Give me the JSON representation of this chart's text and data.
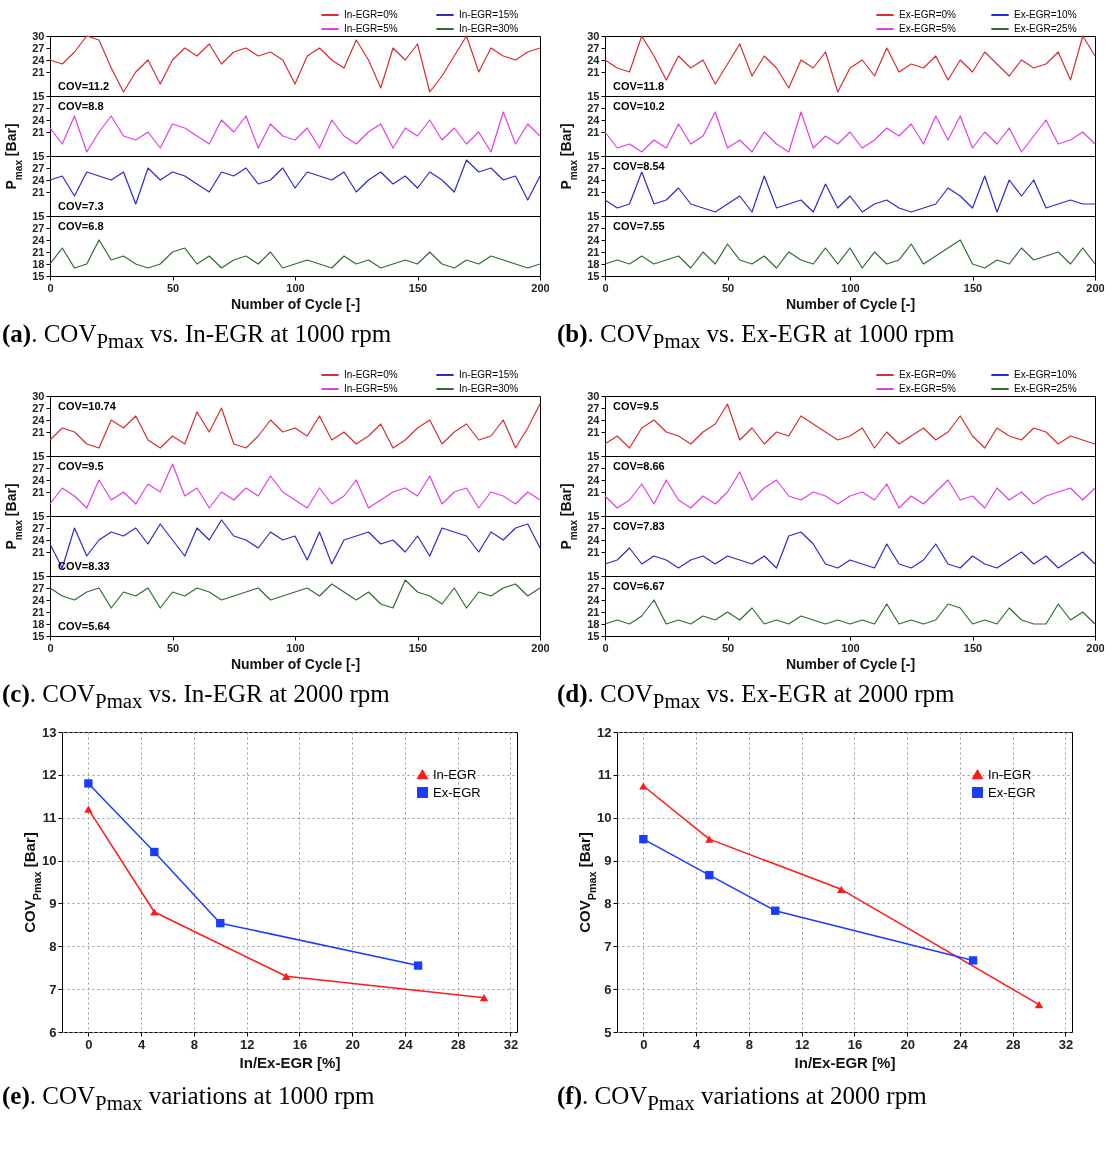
{
  "chart_data": [
    {
      "type": "line",
      "x": [
        0,
        5,
        10,
        15,
        20,
        25,
        30,
        35,
        40,
        45,
        50,
        55,
        60,
        65,
        70,
        75,
        80,
        85,
        90,
        95,
        100,
        105,
        110,
        115,
        120,
        125,
        130,
        135,
        140,
        145,
        150,
        155,
        160,
        165,
        170,
        175,
        180,
        185,
        190,
        195,
        200
      ],
      "xlim": [
        0,
        200
      ],
      "ylim": [
        15,
        30
      ],
      "yticks": [
        15,
        21,
        24,
        27,
        30
      ],
      "tick_labels": "y",
      "legend": "top right",
      "annotations": [
        "COV=11.2"
      ],
      "series": [
        {
          "name": "In-EGR=0%",
          "color": "#d62f2f",
          "values": [
            24,
            23,
            26,
            30,
            29,
            22,
            16,
            21,
            24,
            18,
            24,
            27,
            25,
            28,
            23,
            26,
            27,
            25,
            26,
            24,
            18,
            25,
            27,
            24,
            22,
            29,
            24,
            17,
            27,
            24,
            28,
            16,
            20,
            25,
            30,
            21,
            27,
            25,
            24,
            26,
            27
          ]
        }
      ]
    },
    {
      "type": "line",
      "x": [
        0,
        5,
        10,
        15,
        20,
        25,
        30,
        35,
        40,
        45,
        50,
        55,
        60,
        65,
        70,
        75,
        80,
        85,
        90,
        95,
        100,
        105,
        110,
        115,
        120,
        125,
        130,
        135,
        140,
        145,
        150,
        155,
        160,
        165,
        170,
        175,
        180,
        185,
        190,
        195,
        200
      ],
      "xlim": [
        0,
        200
      ],
      "ylim": [
        15,
        30
      ],
      "yticks": [
        15,
        21,
        24,
        27
      ],
      "tick_labels": "y",
      "legend": "top right",
      "ylabel": "P$_{max}$ [Bar]",
      "annotations": [
        "COV=8.8"
      ],
      "series": [
        {
          "name": "In-EGR=5%",
          "color": "#e040e0",
          "values": [
            22,
            18,
            25,
            16,
            21,
            25,
            20,
            19,
            21,
            17,
            23,
            22,
            20,
            18,
            24,
            21,
            25,
            17,
            23,
            20,
            19,
            22,
            17,
            24,
            20,
            18,
            21,
            23,
            17,
            22,
            20,
            24,
            19,
            22,
            18,
            21,
            16,
            26,
            18,
            23,
            20
          ]
        }
      ]
    },
    {
      "type": "line",
      "x": [
        0,
        5,
        10,
        15,
        20,
        25,
        30,
        35,
        40,
        45,
        50,
        55,
        60,
        65,
        70,
        75,
        80,
        85,
        90,
        95,
        100,
        105,
        110,
        115,
        120,
        125,
        130,
        135,
        140,
        145,
        150,
        155,
        160,
        165,
        170,
        175,
        180,
        185,
        190,
        195,
        200
      ],
      "xlim": [
        0,
        200
      ],
      "ylim": [
        15,
        30
      ],
      "yticks": [
        15,
        21,
        24,
        27
      ],
      "tick_labels": "y",
      "legend": "top right",
      "annotations": [
        "COV=7.3"
      ],
      "series": [
        {
          "name": "In-EGR=15%",
          "color": "#2b2bc8",
          "values": [
            24,
            25,
            20,
            26,
            25,
            24,
            26,
            18,
            27,
            24,
            26,
            25,
            23,
            21,
            26,
            25,
            27,
            23,
            24,
            27,
            22,
            26,
            25,
            24,
            26,
            21,
            24,
            26,
            23,
            25,
            22,
            26,
            24,
            21,
            29,
            26,
            27,
            24,
            25,
            19,
            25
          ]
        }
      ]
    },
    {
      "type": "line",
      "x": [
        0,
        5,
        10,
        15,
        20,
        25,
        30,
        35,
        40,
        45,
        50,
        55,
        60,
        65,
        70,
        75,
        80,
        85,
        90,
        95,
        100,
        105,
        110,
        115,
        120,
        125,
        130,
        135,
        140,
        145,
        150,
        155,
        160,
        165,
        170,
        175,
        180,
        185,
        190,
        195,
        200
      ],
      "xlim": [
        0,
        200
      ],
      "xticks": [
        0,
        50,
        100,
        150,
        200
      ],
      "ylim": [
        15,
        30
      ],
      "yticks": [
        15,
        18,
        21,
        24,
        27
      ],
      "legend": "top right",
      "xlabel": "Number of Cycle [-]",
      "title": "(a). COV$_{Pmax}$ vs. In-EGR at 1000 rpm",
      "annotations": [
        "COV=6.8"
      ],
      "series": [
        {
          "name": "In-EGR=30%",
          "color": "#2f6e2f",
          "values": [
            18,
            22,
            17,
            18,
            24,
            19,
            20,
            18,
            17,
            18,
            21,
            22,
            18,
            20,
            17,
            19,
            20,
            18,
            21,
            17,
            18,
            19,
            18,
            17,
            20,
            18,
            19,
            17,
            18,
            19,
            18,
            21,
            18,
            17,
            19,
            18,
            20,
            19,
            18,
            17,
            18
          ]
        }
      ]
    },
    {
      "type": "line",
      "x": [
        0,
        5,
        10,
        15,
        20,
        25,
        30,
        35,
        40,
        45,
        50,
        55,
        60,
        65,
        70,
        75,
        80,
        85,
        90,
        95,
        100,
        105,
        110,
        115,
        120,
        125,
        130,
        135,
        140,
        145,
        150,
        155,
        160,
        165,
        170,
        175,
        180,
        185,
        190,
        195,
        200
      ],
      "xlim": [
        0,
        200
      ],
      "ylim": [
        15,
        30
      ],
      "yticks": [
        15,
        21,
        24,
        27,
        30
      ],
      "tick_labels": "y",
      "legend": "top right",
      "annotations": [
        "COV=11.8"
      ],
      "series": [
        {
          "name": "Ex-EGR=0%",
          "color": "#d62f2f",
          "values": [
            24,
            22,
            21,
            30,
            25,
            19,
            25,
            22,
            24,
            18,
            23,
            28,
            20,
            25,
            22,
            17,
            24,
            22,
            26,
            16,
            22,
            24,
            20,
            27,
            21,
            23,
            22,
            25,
            19,
            24,
            21,
            26,
            23,
            20,
            24,
            22,
            23,
            26,
            19,
            30,
            25
          ]
        }
      ]
    },
    {
      "type": "line",
      "x": [
        0,
        5,
        10,
        15,
        20,
        25,
        30,
        35,
        40,
        45,
        50,
        55,
        60,
        65,
        70,
        75,
        80,
        85,
        90,
        95,
        100,
        105,
        110,
        115,
        120,
        125,
        130,
        135,
        140,
        145,
        150,
        155,
        160,
        165,
        170,
        175,
        180,
        185,
        190,
        195,
        200
      ],
      "xlim": [
        0,
        200
      ],
      "ylim": [
        15,
        30
      ],
      "yticks": [
        15,
        21,
        24,
        27
      ],
      "tick_labels": "y",
      "legend": "top right",
      "ylabel": "P$_{max}$ [Bar]",
      "annotations": [
        "COV=10.2"
      ],
      "series": [
        {
          "name": "Ex-EGR=5%",
          "color": "#e040e0",
          "values": [
            21,
            17,
            18,
            16,
            19,
            17,
            23,
            18,
            20,
            26,
            17,
            19,
            16,
            21,
            18,
            16,
            26,
            17,
            20,
            18,
            21,
            17,
            19,
            22,
            20,
            23,
            18,
            25,
            19,
            25,
            17,
            21,
            18,
            22,
            16,
            20,
            24,
            18,
            19,
            21,
            18
          ]
        }
      ]
    },
    {
      "type": "line",
      "x": [
        0,
        5,
        10,
        15,
        20,
        25,
        30,
        35,
        40,
        45,
        50,
        55,
        60,
        65,
        70,
        75,
        80,
        85,
        90,
        95,
        100,
        105,
        110,
        115,
        120,
        125,
        130,
        135,
        140,
        145,
        150,
        155,
        160,
        165,
        170,
        175,
        180,
        185,
        190,
        195,
        200
      ],
      "xlim": [
        0,
        200
      ],
      "ylim": [
        15,
        30
      ],
      "yticks": [
        15,
        21,
        24,
        27
      ],
      "tick_labels": "y",
      "legend": "top right",
      "annotations": [
        "COV=8.54"
      ],
      "series": [
        {
          "name": "Ex-EGR=10%",
          "color": "#2b2bc8",
          "values": [
            19,
            17,
            18,
            26,
            18,
            19,
            22,
            18,
            17,
            16,
            18,
            20,
            16,
            25,
            17,
            18,
            19,
            16,
            23,
            17,
            20,
            16,
            18,
            19,
            17,
            16,
            17,
            18,
            22,
            20,
            17,
            25,
            16,
            24,
            20,
            24,
            17,
            18,
            19,
            18,
            18
          ]
        }
      ]
    },
    {
      "type": "line",
      "x": [
        0,
        5,
        10,
        15,
        20,
        25,
        30,
        35,
        40,
        45,
        50,
        55,
        60,
        65,
        70,
        75,
        80,
        85,
        90,
        95,
        100,
        105,
        110,
        115,
        120,
        125,
        130,
        135,
        140,
        145,
        150,
        155,
        160,
        165,
        170,
        175,
        180,
        185,
        190,
        195,
        200
      ],
      "xlim": [
        0,
        200
      ],
      "xticks": [
        0,
        50,
        100,
        150,
        200
      ],
      "ylim": [
        15,
        30
      ],
      "yticks": [
        15,
        18,
        21,
        24,
        27
      ],
      "legend": "top right",
      "xlabel": "Number of Cycle [-]",
      "title": "(b). COV$_{Pmax}$ vs. Ex-EGR at 1000 rpm",
      "annotations": [
        "COV=7.55"
      ],
      "series": [
        {
          "name": "Ex-EGR=25%",
          "color": "#2f6e2f",
          "values": [
            18,
            19,
            18,
            20,
            18,
            19,
            20,
            17,
            21,
            18,
            23,
            19,
            18,
            20,
            17,
            21,
            19,
            18,
            22,
            18,
            22,
            17,
            21,
            18,
            19,
            23,
            18,
            20,
            22,
            24,
            18,
            17,
            19,
            18,
            22,
            19,
            20,
            21,
            18,
            22,
            18
          ]
        }
      ]
    },
    {
      "type": "line",
      "x": [
        0,
        5,
        10,
        15,
        20,
        25,
        30,
        35,
        40,
        45,
        50,
        55,
        60,
        65,
        70,
        75,
        80,
        85,
        90,
        95,
        100,
        105,
        110,
        115,
        120,
        125,
        130,
        135,
        140,
        145,
        150,
        155,
        160,
        165,
        170,
        175,
        180,
        185,
        190,
        195,
        200
      ],
      "xlim": [
        0,
        200
      ],
      "ylim": [
        15,
        30
      ],
      "yticks": [
        15,
        21,
        24,
        27,
        30
      ],
      "tick_labels": "y",
      "legend": "top right",
      "annotations": [
        "COV=10.74"
      ],
      "series": [
        {
          "name": "In-EGR=0%",
          "color": "#d62f2f",
          "values": [
            19,
            22,
            21,
            18,
            17,
            24,
            22,
            25,
            19,
            17,
            20,
            18,
            26,
            21,
            27,
            18,
            17,
            20,
            24,
            21,
            22,
            20,
            25,
            19,
            21,
            18,
            20,
            23,
            17,
            19,
            22,
            24,
            18,
            21,
            23,
            19,
            20,
            24,
            17,
            22,
            28
          ]
        }
      ]
    },
    {
      "type": "line",
      "x": [
        0,
        5,
        10,
        15,
        20,
        25,
        30,
        35,
        40,
        45,
        50,
        55,
        60,
        65,
        70,
        75,
        80,
        85,
        90,
        95,
        100,
        105,
        110,
        115,
        120,
        125,
        130,
        135,
        140,
        145,
        150,
        155,
        160,
        165,
        170,
        175,
        180,
        185,
        190,
        195,
        200
      ],
      "xlim": [
        0,
        200
      ],
      "ylim": [
        15,
        30
      ],
      "yticks": [
        15,
        21,
        24,
        27
      ],
      "tick_labels": "y",
      "legend": "top right",
      "ylabel": "P$_{max}$ [Bar]",
      "annotations": [
        "COV=9.5"
      ],
      "series": [
        {
          "name": "In-EGR=5%",
          "color": "#e040e0",
          "values": [
            18,
            22,
            20,
            17,
            24,
            19,
            21,
            18,
            23,
            21,
            28,
            20,
            22,
            17,
            21,
            19,
            22,
            20,
            25,
            21,
            19,
            17,
            22,
            18,
            20,
            24,
            17,
            19,
            21,
            22,
            20,
            25,
            18,
            21,
            22,
            17,
            21,
            20,
            18,
            21,
            19
          ]
        }
      ]
    },
    {
      "type": "line",
      "x": [
        0,
        5,
        10,
        15,
        20,
        25,
        30,
        35,
        40,
        45,
        50,
        55,
        60,
        65,
        70,
        75,
        80,
        85,
        90,
        95,
        100,
        105,
        110,
        115,
        120,
        125,
        130,
        135,
        140,
        145,
        150,
        155,
        160,
        165,
        170,
        175,
        180,
        185,
        190,
        195,
        200
      ],
      "xlim": [
        0,
        200
      ],
      "ylim": [
        15,
        30
      ],
      "yticks": [
        15,
        21,
        24,
        27
      ],
      "tick_labels": "y",
      "legend": "top right",
      "annotations": [
        "COV=8.33"
      ],
      "series": [
        {
          "name": "In-EGR=15%",
          "color": "#2b2bc8",
          "values": [
            23,
            17,
            27,
            20,
            24,
            26,
            25,
            27,
            23,
            28,
            24,
            20,
            27,
            24,
            29,
            25,
            24,
            22,
            26,
            24,
            25,
            19,
            26,
            18,
            24,
            25,
            26,
            23,
            24,
            21,
            25,
            20,
            27,
            26,
            25,
            21,
            26,
            24,
            27,
            28,
            22
          ]
        }
      ]
    },
    {
      "type": "line",
      "x": [
        0,
        5,
        10,
        15,
        20,
        25,
        30,
        35,
        40,
        45,
        50,
        55,
        60,
        65,
        70,
        75,
        80,
        85,
        90,
        95,
        100,
        105,
        110,
        115,
        120,
        125,
        130,
        135,
        140,
        145,
        150,
        155,
        160,
        165,
        170,
        175,
        180,
        185,
        190,
        195,
        200
      ],
      "xlim": [
        0,
        200
      ],
      "xticks": [
        0,
        50,
        100,
        150,
        200
      ],
      "ylim": [
        15,
        30
      ],
      "yticks": [
        15,
        18,
        21,
        24,
        27
      ],
      "legend": "top right",
      "xlabel": "Number of Cycle [-]",
      "title": "(c). COV$_{Pmax}$ vs. In-EGR at 2000 rpm",
      "annotations": [
        "COV=5.64"
      ],
      "series": [
        {
          "name": "In-EGR=30%",
          "color": "#2f6e2f",
          "values": [
            27,
            25,
            24,
            26,
            27,
            22,
            26,
            25,
            27,
            22,
            26,
            25,
            27,
            26,
            24,
            25,
            26,
            27,
            24,
            25,
            26,
            27,
            25,
            28,
            26,
            24,
            26,
            23,
            22,
            29,
            26,
            25,
            23,
            27,
            22,
            26,
            25,
            27,
            28,
            25,
            27
          ]
        }
      ]
    },
    {
      "type": "line",
      "x": [
        0,
        5,
        10,
        15,
        20,
        25,
        30,
        35,
        40,
        45,
        50,
        55,
        60,
        65,
        70,
        75,
        80,
        85,
        90,
        95,
        100,
        105,
        110,
        115,
        120,
        125,
        130,
        135,
        140,
        145,
        150,
        155,
        160,
        165,
        170,
        175,
        180,
        185,
        190,
        195,
        200
      ],
      "xlim": [
        0,
        200
      ],
      "ylim": [
        15,
        30
      ],
      "yticks": [
        15,
        21,
        24,
        27,
        30
      ],
      "tick_labels": "y",
      "legend": "top right",
      "annotations": [
        "COV=9.5"
      ],
      "series": [
        {
          "name": "Ex-EGR=0%",
          "color": "#d62f2f",
          "values": [
            18,
            20,
            17,
            22,
            24,
            21,
            20,
            18,
            21,
            23,
            28,
            19,
            22,
            18,
            21,
            20,
            25,
            23,
            21,
            19,
            20,
            22,
            17,
            21,
            18,
            20,
            22,
            19,
            21,
            25,
            20,
            17,
            22,
            20,
            19,
            22,
            21,
            18,
            20,
            19,
            18
          ]
        }
      ]
    },
    {
      "type": "line",
      "x": [
        0,
        5,
        10,
        15,
        20,
        25,
        30,
        35,
        40,
        45,
        50,
        55,
        60,
        65,
        70,
        75,
        80,
        85,
        90,
        95,
        100,
        105,
        110,
        115,
        120,
        125,
        130,
        135,
        140,
        145,
        150,
        155,
        160,
        165,
        170,
        175,
        180,
        185,
        190,
        195,
        200
      ],
      "xlim": [
        0,
        200
      ],
      "ylim": [
        15,
        30
      ],
      "yticks": [
        15,
        21,
        24,
        27
      ],
      "tick_labels": "y",
      "legend": "top right",
      "ylabel": "P$_{max}$ [Bar]",
      "annotations": [
        "COV=8.66"
      ],
      "series": [
        {
          "name": "Ex-EGR=5%",
          "color": "#e040e0",
          "values": [
            20,
            17,
            19,
            23,
            18,
            24,
            19,
            17,
            20,
            18,
            21,
            26,
            19,
            22,
            24,
            20,
            19,
            21,
            20,
            18,
            20,
            21,
            19,
            23,
            17,
            20,
            18,
            21,
            24,
            19,
            20,
            17,
            22,
            19,
            21,
            18,
            20,
            21,
            22,
            19,
            22
          ]
        }
      ]
    },
    {
      "type": "line",
      "x": [
        0,
        5,
        10,
        15,
        20,
        25,
        30,
        35,
        40,
        45,
        50,
        55,
        60,
        65,
        70,
        75,
        80,
        85,
        90,
        95,
        100,
        105,
        110,
        115,
        120,
        125,
        130,
        135,
        140,
        145,
        150,
        155,
        160,
        165,
        170,
        175,
        180,
        185,
        190,
        195,
        200
      ],
      "xlim": [
        0,
        200
      ],
      "ylim": [
        15,
        30
      ],
      "yticks": [
        15,
        21,
        24,
        27
      ],
      "tick_labels": "y",
      "legend": "top right",
      "annotations": [
        "COV=7.83"
      ],
      "series": [
        {
          "name": "Ex-EGR=10%",
          "color": "#2b2bc8",
          "values": [
            18,
            19,
            22,
            18,
            20,
            19,
            17,
            19,
            20,
            18,
            20,
            19,
            18,
            20,
            17,
            25,
            26,
            23,
            18,
            17,
            19,
            18,
            17,
            23,
            18,
            17,
            19,
            23,
            18,
            17,
            20,
            18,
            17,
            19,
            21,
            18,
            20,
            17,
            19,
            21,
            18
          ]
        }
      ]
    },
    {
      "type": "line",
      "x": [
        0,
        5,
        10,
        15,
        20,
        25,
        30,
        35,
        40,
        45,
        50,
        55,
        60,
        65,
        70,
        75,
        80,
        85,
        90,
        95,
        100,
        105,
        110,
        115,
        120,
        125,
        130,
        135,
        140,
        145,
        150,
        155,
        160,
        165,
        170,
        175,
        180,
        185,
        190,
        195,
        200
      ],
      "xlim": [
        0,
        200
      ],
      "xticks": [
        0,
        50,
        100,
        150,
        200
      ],
      "ylim": [
        15,
        30
      ],
      "yticks": [
        15,
        18,
        21,
        24,
        27
      ],
      "legend": "top right",
      "xlabel": "Number of Cycle [-]",
      "title": "(d). COV$_{Pmax}$ vs. Ex-EGR at 2000 rpm",
      "annotations": [
        "COV=6.67"
      ],
      "series": [
        {
          "name": "Ex-EGR=25%",
          "color": "#2f6e2f",
          "values": [
            18,
            19,
            18,
            20,
            24,
            18,
            19,
            18,
            20,
            19,
            21,
            19,
            22,
            18,
            19,
            18,
            20,
            19,
            18,
            19,
            18,
            19,
            18,
            23,
            18,
            19,
            18,
            19,
            23,
            22,
            18,
            19,
            18,
            22,
            19,
            18,
            18,
            23,
            19,
            21,
            18
          ]
        }
      ]
    },
    {
      "type": "line",
      "title": "(e). COV$_{Pmax}$ variations at 1000 rpm",
      "xlabel": "In/Ex-EGR [%]",
      "ylabel": "COV$_{Pmax}$ [Bar]",
      "xlim": [
        -2,
        32.5
      ],
      "xticks": [
        0,
        4,
        8,
        12,
        16,
        20,
        24,
        28,
        32
      ],
      "ylim": [
        6,
        13
      ],
      "yticks": [
        6,
        7,
        8,
        9,
        10,
        11,
        12,
        13
      ],
      "grid": true,
      "legend": "top right",
      "series": [
        {
          "name": "In-EGR",
          "color": "#ff1a1a",
          "marker": "triangle",
          "x": [
            0,
            5,
            15,
            30
          ],
          "values": [
            11.2,
            8.8,
            7.3,
            6.8
          ]
        },
        {
          "name": "Ex-EGR",
          "color": "#1a3cff",
          "marker": "square",
          "x": [
            0,
            5,
            10,
            25
          ],
          "values": [
            11.8,
            10.2,
            8.54,
            7.55
          ]
        }
      ]
    },
    {
      "type": "line",
      "title": "(f). COV$_{Pmax}$ variations at 2000 rpm",
      "xlabel": "In/Ex-EGR [%]",
      "ylabel": "COV$_{Pmax}$ [Bar]",
      "xlim": [
        -2,
        32.5
      ],
      "xticks": [
        0,
        4,
        8,
        12,
        16,
        20,
        24,
        28,
        32
      ],
      "ylim": [
        5,
        12
      ],
      "yticks": [
        5,
        6,
        7,
        8,
        9,
        10,
        11,
        12
      ],
      "grid": true,
      "legend": "top right",
      "series": [
        {
          "name": "In-EGR",
          "color": "#ff1a1a",
          "marker": "triangle",
          "x": [
            0,
            5,
            15,
            30
          ],
          "values": [
            10.74,
            9.5,
            8.33,
            5.64
          ]
        },
        {
          "name": "Ex-EGR",
          "color": "#1a3cff",
          "marker": "square",
          "x": [
            0,
            5,
            10,
            25
          ],
          "values": [
            9.5,
            8.66,
            7.83,
            6.67
          ]
        }
      ]
    }
  ]
}
